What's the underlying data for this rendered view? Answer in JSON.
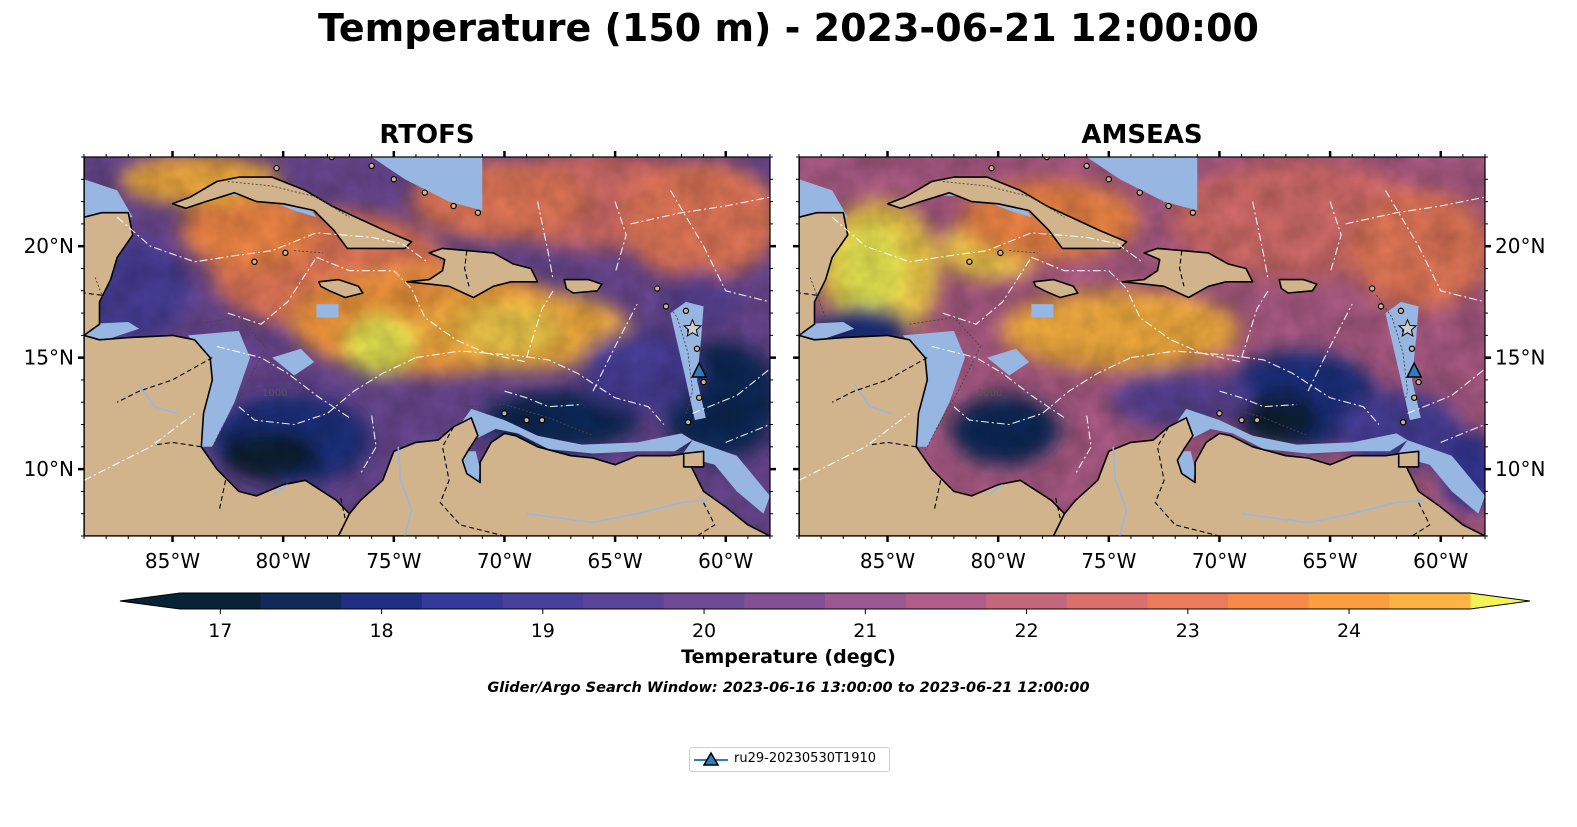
{
  "figure": {
    "title": "Temperature (150 m) - 2023-06-21 12:00:00",
    "panels": [
      {
        "title": "RTOFS",
        "model": "RTOFS"
      },
      {
        "title": "AMSEAS",
        "model": "AMSEAS"
      }
    ],
    "map_extent": {
      "lon": [
        -89,
        -58
      ],
      "lat": [
        7,
        24
      ]
    },
    "lon_ticks": [
      {
        "value": -85,
        "label": "85°W"
      },
      {
        "value": -80,
        "label": "80°W"
      },
      {
        "value": -75,
        "label": "75°W"
      },
      {
        "value": -70,
        "label": "70°W"
      },
      {
        "value": -65,
        "label": "65°W"
      },
      {
        "value": -60,
        "label": "60°W"
      }
    ],
    "lat_ticks": [
      {
        "value": 10,
        "label": "10°N"
      },
      {
        "value": 15,
        "label": "15°N"
      },
      {
        "value": 20,
        "label": "20°N"
      }
    ],
    "colorbar": {
      "label": "Temperature (degC)",
      "range": [
        16.75,
        24.75
      ],
      "levels": [
        16.75,
        17.25,
        17.75,
        18.25,
        18.75,
        19.25,
        19.75,
        20.25,
        20.75,
        21.25,
        21.75,
        22.25,
        22.75,
        23.25,
        23.75,
        24.25,
        24.75
      ],
      "colors": [
        "#082336",
        "#112a5a",
        "#1f3083",
        "#35399a",
        "#48409c",
        "#5b4599",
        "#6e4a96",
        "#845093",
        "#9a5790",
        "#b05e89",
        "#c5677c",
        "#d9706d",
        "#eb7b5c",
        "#f78a4a",
        "#fc9d3f",
        "#fdb443",
        "#f9d24e"
      ],
      "extend": "both",
      "under_color": "#082336",
      "over_color": "#f4f356",
      "ticks": [
        {
          "value": 17,
          "label": "17"
        },
        {
          "value": 18,
          "label": "18"
        },
        {
          "value": 19,
          "label": "19"
        },
        {
          "value": 20,
          "label": "20"
        },
        {
          "value": 21,
          "label": "21"
        },
        {
          "value": 22,
          "label": "22"
        },
        {
          "value": 23,
          "label": "23"
        },
        {
          "value": 24,
          "label": "24"
        }
      ]
    },
    "search_window": "Glider/Argo Search Window: 2023-06-16 13:00:00 to 2023-06-21 12:00:00",
    "legend": {
      "entries": [
        {
          "label": "ru29-20230530T1910",
          "marker": "triangle-up-icon",
          "color": "#2a7fbf"
        }
      ]
    },
    "glider": {
      "lon": -61.2,
      "lat": 14.4
    },
    "star_marker": {
      "lon": -61.5,
      "lat": 16.3
    },
    "contour_label": "1000",
    "colors": {
      "land": "#d2b48c",
      "shelf_water": "#97b6e1",
      "coast": "#000000",
      "eez_lines": "#ffffff",
      "rivers": "#97b6e1"
    }
  }
}
